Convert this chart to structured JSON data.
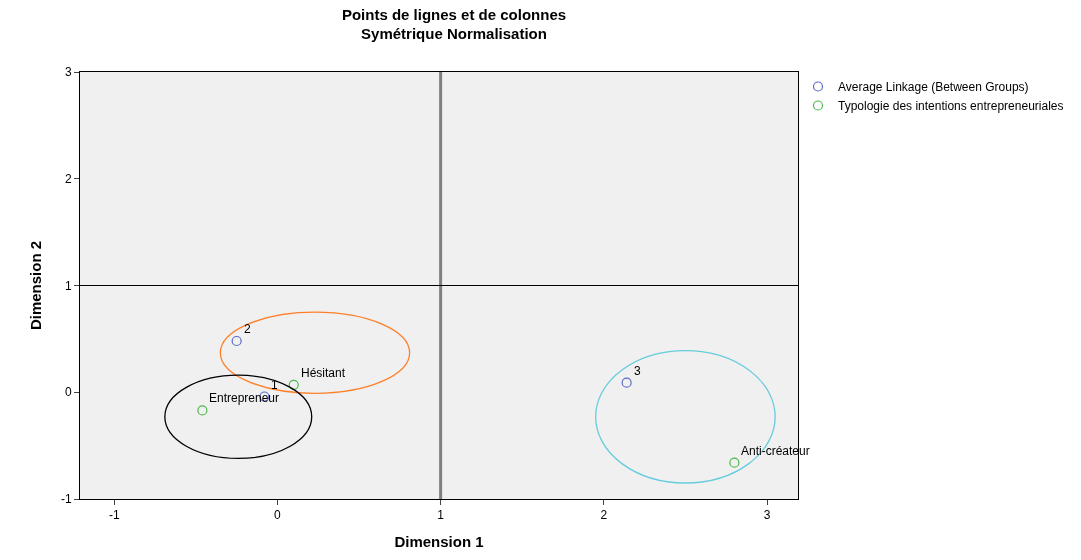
{
  "chart_data": {
    "type": "scatter",
    "title": "Points de lignes et de colonnes",
    "subtitle": "Symétrique Normalisation",
    "xlabel": "Dimension 1",
    "ylabel": "Dimension 2",
    "xlim": [
      -1.21,
      3.19
    ],
    "ylim": [
      -1,
      3
    ],
    "xticks": [
      -1,
      0,
      1,
      2,
      3
    ],
    "yticks": [
      -1,
      0,
      1,
      2,
      3
    ],
    "grid": false,
    "legend": "top right",
    "marker": "circle",
    "series": [
      {
        "name": "Average Linkage (Between Groups)",
        "color": "#5a6ac8",
        "x": [
          -0.08,
          -0.25,
          2.14
        ],
        "values": [
          -0.04,
          0.48,
          0.09
        ]
      },
      {
        "name": "Typologie des intentions entrepreneuriales",
        "color": "#4cb84c",
        "x": [
          -0.46,
          0.1,
          2.8
        ],
        "values": [
          -0.17,
          0.07,
          -0.66
        ]
      }
    ],
    "annotations": [
      {
        "text": "1",
        "x": -0.08,
        "y": -0.04
      },
      {
        "text": "2",
        "x": -0.25,
        "y": 0.48
      },
      {
        "text": "3",
        "x": 2.14,
        "y": 0.09
      },
      {
        "text": "Entrepreneur",
        "x": -0.46,
        "y": -0.17
      },
      {
        "text": "Hésitant",
        "x": 0.1,
        "y": 0.07
      },
      {
        "text": "Anti-créateur",
        "x": 2.8,
        "y": -0.66
      }
    ],
    "ref_lines": [
      {
        "axis": "x",
        "value": 1,
        "color": "#808080"
      },
      {
        "axis": "y",
        "value": 1,
        "color": "#000000"
      }
    ]
  }
}
